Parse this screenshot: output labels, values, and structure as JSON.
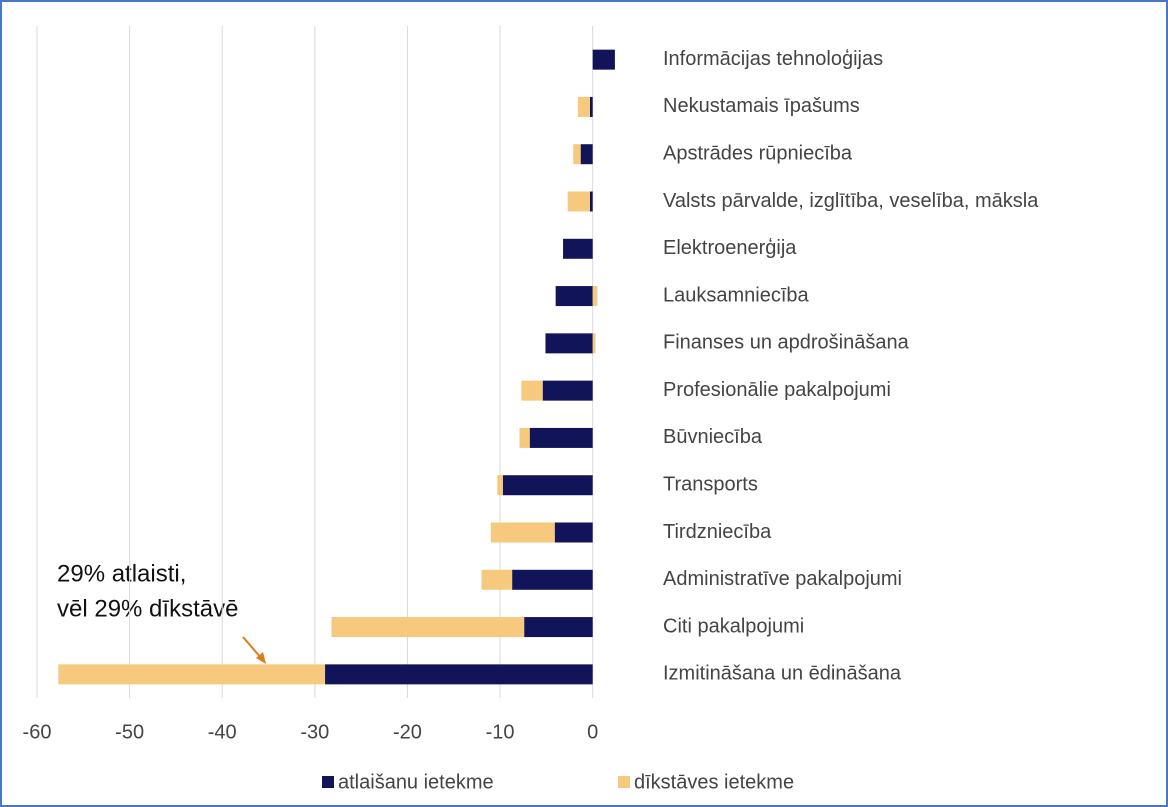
{
  "chart_data": {
    "type": "stacked_bar_horizontal",
    "categories": [
      "Informācijas tehnoloģijas",
      "Nekustamais īpašums",
      "Apstrādes rūpniecība",
      "Valsts pārvalde, izglītība, veselība, māksla",
      "Elektroenerģija",
      "Lauksamniecība",
      "Finanses un apdrošināšana",
      "Profesionālie pakalpojumi",
      "Būvniecība",
      "Transports",
      "Tirdzniecība",
      "Administratīve pakalpojumi",
      "Citi pakalpojumi",
      "Izmitināšana un ēdināšana"
    ],
    "series": [
      {
        "name": "atlaišanu ietekme",
        "color": "#12145a",
        "values": [
          2.4,
          -0.3,
          -1.3,
          -0.3,
          -3.2,
          -4.0,
          -5.1,
          -5.4,
          -6.8,
          -9.7,
          -4.1,
          -8.7,
          -7.4,
          -28.9
        ]
      },
      {
        "name": "dīkstāves ietekme",
        "color": "#f6c97e",
        "values": [
          0,
          -1.3,
          -0.8,
          -2.4,
          0,
          0.5,
          0.3,
          -2.3,
          -1.1,
          -0.6,
          -6.9,
          -3.3,
          -20.8,
          -28.8
        ]
      }
    ],
    "xlim": [
      -60,
      5
    ],
    "xticks": [
      -60,
      -50,
      -40,
      -30,
      -20,
      -10,
      0
    ],
    "grid": true,
    "annotation": [
      "29% atlaisti,",
      "vēl 29% dīkstāvē"
    ]
  }
}
